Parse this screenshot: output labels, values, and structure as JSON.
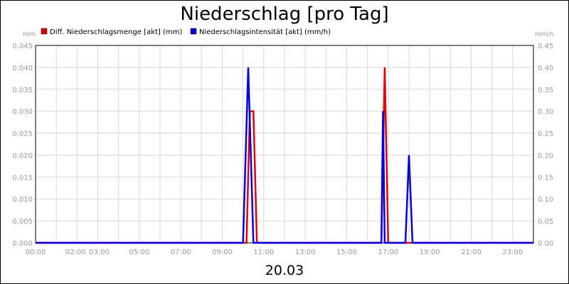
{
  "chart_data": {
    "type": "line",
    "title": "Niederschlag [pro Tag]",
    "xlabel": "20.03",
    "y_left_unit": "mm",
    "y_right_unit": "mm/h",
    "ylim_left": [
      0,
      0.045
    ],
    "ylim_right": [
      0,
      0.45
    ],
    "yticks_left": [
      "0.000",
      "0.005",
      "0.010",
      "0.015",
      "0.020",
      "0.025",
      "0.030",
      "0.035",
      "0.040",
      "0.045"
    ],
    "yticks_right": [
      "0.00",
      "0.05",
      "0.10",
      "0.15",
      "0.20",
      "0.25",
      "0.30",
      "0.35",
      "0.40",
      "0.45"
    ],
    "xlim": [
      0,
      24
    ],
    "xticks": [
      {
        "h": 0,
        "label": "00:00"
      },
      {
        "h": 2,
        "label": "02:00"
      },
      {
        "h": 3,
        "label": "03:00"
      },
      {
        "h": 5,
        "label": "05:00"
      },
      {
        "h": 7,
        "label": "07:00"
      },
      {
        "h": 9,
        "label": "09:00"
      },
      {
        "h": 11,
        "label": "11:00"
      },
      {
        "h": 13,
        "label": "13:00"
      },
      {
        "h": 15,
        "label": "15:00"
      },
      {
        "h": 17,
        "label": "17:00"
      },
      {
        "h": 19,
        "label": "19:00"
      },
      {
        "h": 21,
        "label": "21:00"
      },
      {
        "h": 23,
        "label": "23:00"
      }
    ],
    "grid": true,
    "legend_position": "top",
    "series": [
      {
        "name": "Diff. Niederschlagsmenge [akt] (mm)",
        "color": "#e00000",
        "axis": "left",
        "x": [
          0,
          10.17,
          10.33,
          10.5,
          10.67,
          16.67,
          16.83,
          17.0,
          24
        ],
        "y": [
          0,
          0,
          0.03,
          0.03,
          0,
          0,
          0.04,
          0,
          0
        ]
      },
      {
        "name": "Niederschlagsintensität [akt] (mm/h)",
        "color": "#0000e0",
        "axis": "right",
        "x": [
          0,
          10.0,
          10.25,
          10.5,
          16.67,
          16.75,
          16.83,
          17.83,
          18.0,
          18.17,
          24
        ],
        "y": [
          0,
          0,
          0.4,
          0,
          0,
          0.3,
          0,
          0,
          0.2,
          0,
          0
        ]
      }
    ]
  }
}
